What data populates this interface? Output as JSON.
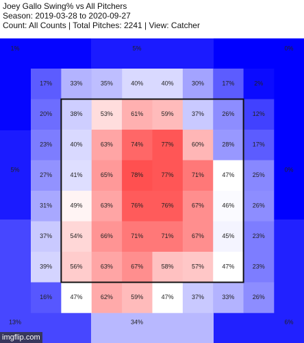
{
  "chart_data": {
    "type": "heatmap",
    "title_lines": [
      "Joey Gallo Swing% vs All Pitchers",
      "Season: 2019-03-28 to 2020-09-27",
      "Count: All Counts | Total Pitches: 2241 | View: Catcher"
    ],
    "colors": [
      "#0000ff",
      "#ffffff",
      "#ff5050"
    ],
    "strike_zone_color": "#111111",
    "values": [
      [
        17,
        33,
        35,
        40,
        40,
        30,
        17,
        2
      ],
      [
        20,
        38,
        53,
        61,
        59,
        37,
        26,
        12
      ],
      [
        23,
        40,
        63,
        74,
        77,
        60,
        28,
        17
      ],
      [
        27,
        41,
        65,
        78,
        77,
        71,
        47,
        25
      ],
      [
        31,
        49,
        63,
        76,
        76,
        67,
        46,
        26
      ],
      [
        37,
        54,
        66,
        71,
        71,
        67,
        45,
        23
      ],
      [
        39,
        56,
        63,
        67,
        58,
        57,
        47,
        23
      ],
      [
        16,
        47,
        62,
        59,
        47,
        37,
        33,
        26
      ]
    ],
    "value_labels": [
      [
        "17%",
        "33%",
        "35%",
        "40%",
        "40%",
        "30%",
        "17%",
        "2%"
      ],
      [
        "20%",
        "38%",
        "53%",
        "61%",
        "59%",
        "37%",
        "26%",
        "12%"
      ],
      [
        "23%",
        "40%",
        "63%",
        "74%",
        "77%",
        "60%",
        "28%",
        "17%"
      ],
      [
        "27%",
        "41%",
        "65%",
        "78%",
        "77%",
        "71%",
        "47%",
        "25%"
      ],
      [
        "31%",
        "49%",
        "63%",
        "76%",
        "76%",
        "67%",
        "46%",
        "26%"
      ],
      [
        "37%",
        "54%",
        "66%",
        "71%",
        "71%",
        "67%",
        "45%",
        "23%"
      ],
      [
        "39%",
        "56%",
        "63%",
        "67%",
        "58%",
        "57%",
        "47%",
        "23%"
      ],
      [
        "16%",
        "47%",
        "62%",
        "59%",
        "47%",
        "37%",
        "33%",
        "26%"
      ]
    ],
    "outer_values": [
      1,
      5,
      0,
      5,
      0,
      13,
      34,
      6
    ],
    "outer_value_labels": [
      "1%",
      "5%",
      "0%",
      "5%",
      "0%",
      "13%",
      "34%",
      "6%"
    ],
    "watermark": "imgflip.com"
  }
}
